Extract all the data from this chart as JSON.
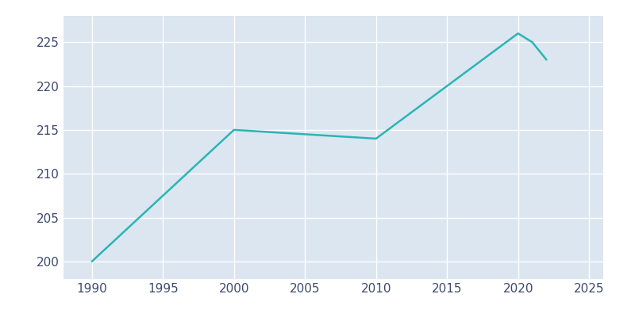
{
  "years": [
    1990,
    2000,
    2005,
    2010,
    2020,
    2021,
    2022
  ],
  "population": [
    200,
    215,
    214.5,
    214,
    226,
    225,
    223
  ],
  "line_color": "#2ab5b5",
  "background_color": "#dce6f0",
  "plot_bg_color": "#dce6f0",
  "outer_bg_color": "#ffffff",
  "grid_color": "#ffffff",
  "tick_color": "#3d4a6e",
  "label_color": "#3d4a6e",
  "xlim": [
    1988,
    2026
  ],
  "ylim": [
    198,
    228
  ],
  "yticks": [
    200,
    205,
    210,
    215,
    220,
    225
  ],
  "xticks": [
    1990,
    1995,
    2000,
    2005,
    2010,
    2015,
    2020,
    2025
  ],
  "line_width": 1.8
}
